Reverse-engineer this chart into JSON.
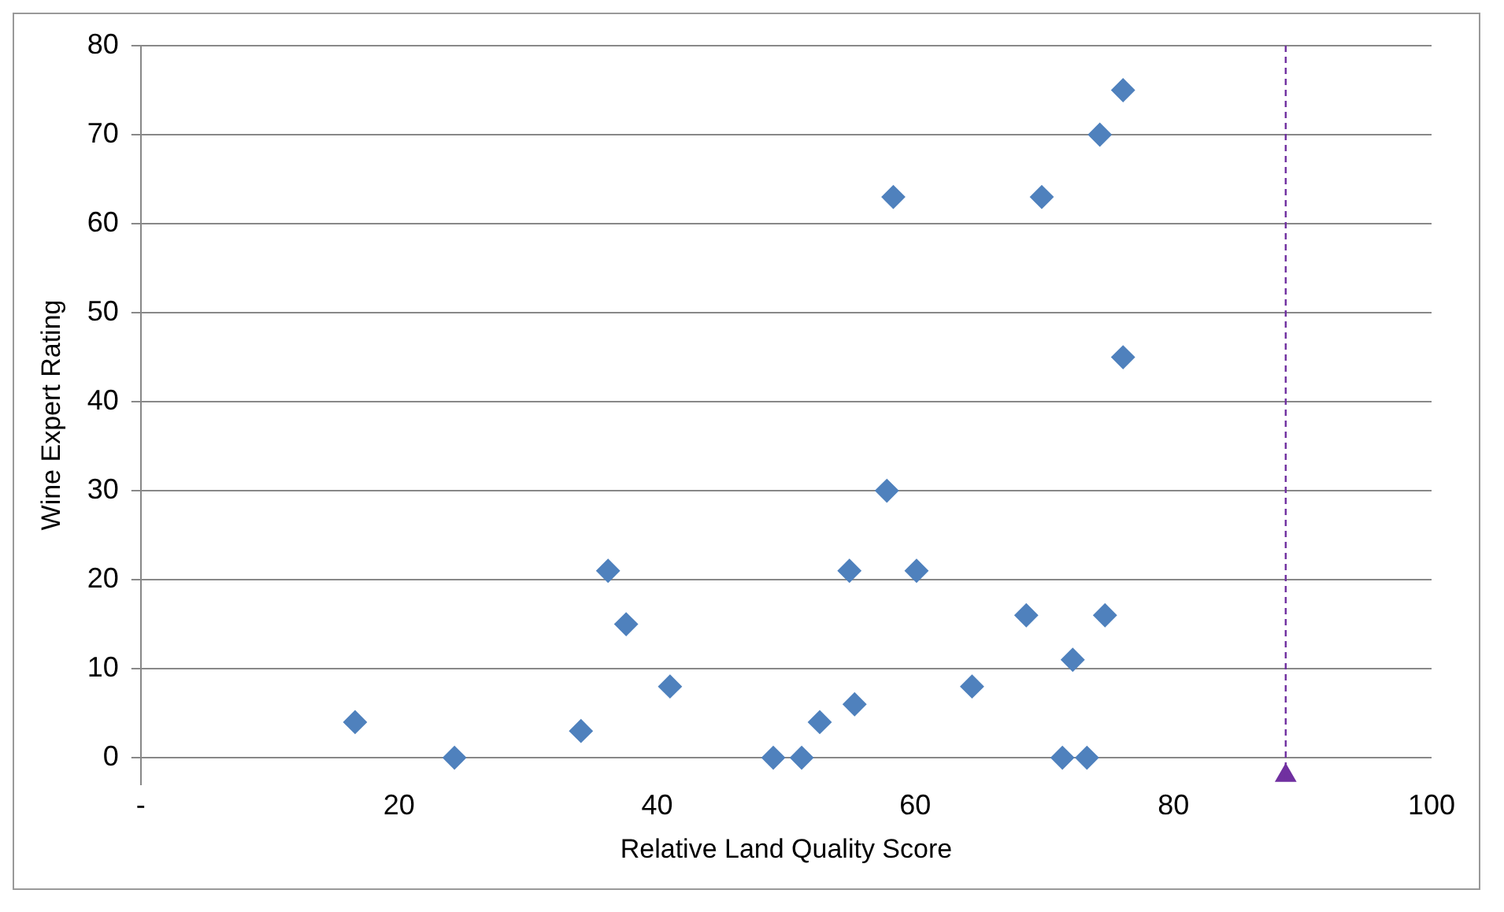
{
  "chart_data": {
    "type": "scatter",
    "xlabel": "Relative Land Quality Score",
    "ylabel": "Wine Expert Rating",
    "xlim": [
      0,
      100
    ],
    "xticks": [
      {
        "value": 0,
        "label": "-"
      },
      20,
      40,
      60,
      80,
      100
    ],
    "ylim": [
      -3,
      80
    ],
    "yticks": [
      0,
      10,
      20,
      30,
      40,
      50,
      60,
      70,
      80
    ],
    "grid": "y",
    "legend": false,
    "series": [
      {
        "color": "#4f81bd",
        "marker": "diamond",
        "x": [
          16.6,
          24.3,
          34.1,
          36.2,
          37.6,
          41.0,
          49.0,
          51.2,
          52.6,
          54.9,
          55.3,
          57.8,
          58.3,
          60.1,
          64.4,
          68.6,
          69.8,
          71.4,
          72.2,
          73.3,
          74.3,
          74.7,
          76.1,
          76.1
        ],
        "values": [
          4,
          0,
          3,
          21,
          15,
          8,
          0,
          0,
          4,
          21,
          6,
          30,
          63,
          21,
          8,
          16,
          63,
          0,
          11,
          0,
          70,
          16,
          75,
          45
        ]
      },
      {
        "color": "#7030a0",
        "marker": "triangle",
        "x": [
          88.7
        ],
        "values": [
          -2
        ]
      }
    ],
    "ref_lines": [
      {
        "axis": "x",
        "value": 88.7,
        "color": "#7030a0",
        "line_style": "dashed"
      }
    ]
  }
}
